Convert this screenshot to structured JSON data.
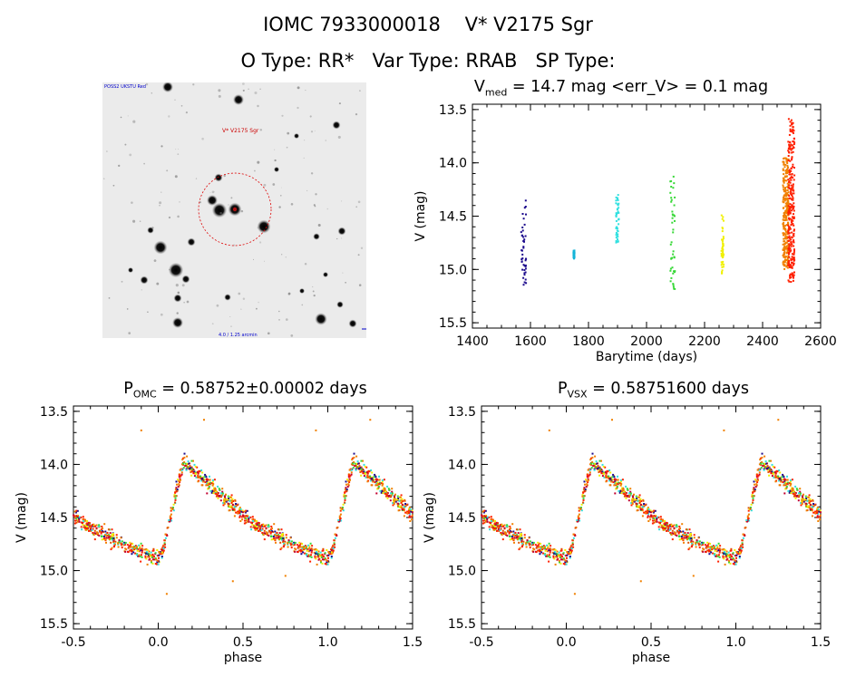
{
  "header": {
    "line1": "IOMC 7933000018    V* V2175 Sgr",
    "line2": "O Type: RR*   Var Type: RRAB   SP Type:"
  },
  "stamp": {
    "top_left_label": "POSS2 UKSTU Red",
    "target_label": "V* V2175 Sgr",
    "bottom_label": "4.0 / 1.25 arcmin",
    "circle_color": "#dd0000",
    "label_color": "#0000cc"
  },
  "titles": {
    "top_right_prefix": "V",
    "top_right_sub": "med",
    "top_right_rest": " = 14.7 mag <err_V> = 0.1 mag",
    "bottom_left_prefix": "P",
    "bottom_left_sub": "OMC",
    "bottom_left_rest": " = 0.58752±0.00002 days",
    "bottom_right_prefix": "P",
    "bottom_right_sub": "VSX",
    "bottom_right_rest": " = 0.58751600 days"
  },
  "chart_data": [
    {
      "type": "scatter",
      "panel": "light-curve",
      "xlabel": "Barytime (days)",
      "ylabel": "V (mag)",
      "xlim": [
        1400,
        2600
      ],
      "ylim": [
        15.55,
        13.45
      ],
      "xticks": [
        1400,
        1600,
        1800,
        2000,
        2200,
        2400,
        2600
      ],
      "yticks": [
        13.5,
        14.0,
        14.5,
        15.0,
        15.5
      ],
      "ytick_labels": [
        "13.5",
        "14.0",
        "14.5",
        "15.0",
        "15.5"
      ],
      "series": [
        {
          "color": "#1c0a8c",
          "x": [
            1568,
            1585
          ],
          "y": [
            14.33,
            15.15
          ],
          "note": "epoch 1"
        },
        {
          "color": "#14b4d8",
          "x": [
            1748,
            1752
          ],
          "y": [
            14.82,
            14.9
          ],
          "note": "epoch 2"
        },
        {
          "color": "#30e0e0",
          "x": [
            1895,
            1905
          ],
          "y": [
            14.3,
            14.78
          ],
          "note": "epoch 3"
        },
        {
          "color": "#38d838",
          "x": [
            2082,
            2098
          ],
          "y": [
            14.08,
            15.22
          ],
          "note": "epoch 4"
        },
        {
          "color": "#f0f000",
          "x": [
            2258,
            2266
          ],
          "y": [
            14.45,
            15.05
          ],
          "note": "epoch 5"
        },
        {
          "color": "#f08000",
          "x": [
            2470,
            2490
          ],
          "y": [
            13.95,
            15.0
          ],
          "note": "epoch 6"
        },
        {
          "color": "#ff2000",
          "x": [
            2488,
            2510
          ],
          "y": [
            13.58,
            15.12
          ],
          "note": "epoch 7"
        }
      ]
    },
    {
      "type": "scatter",
      "panel": "phase-omc",
      "xlabel": "phase",
      "ylabel": "V (mag)",
      "xlim": [
        -0.5,
        1.5
      ],
      "ylim": [
        15.55,
        13.45
      ],
      "xticks": [
        -0.5,
        0.0,
        0.5,
        1.0,
        1.5
      ],
      "xtick_labels": [
        "-0.5",
        "0.0",
        "0.5",
        "1.0",
        "1.5"
      ],
      "yticks": [
        13.5,
        14.0,
        14.5,
        15.0,
        15.5
      ],
      "ytick_labels": [
        "13.5",
        "14.0",
        "14.5",
        "15.0",
        "15.5"
      ],
      "period_days": 0.58752,
      "light_curve_shape": {
        "max_phase": 0.15,
        "max_mag": 13.97,
        "min_phase": 0.0,
        "min_mag": 14.9,
        "mid_phase": 0.5,
        "mid_mag": 14.62
      }
    },
    {
      "type": "scatter",
      "panel": "phase-vsx",
      "xlabel": "phase",
      "ylabel": "V (mag)",
      "xlim": [
        -0.5,
        1.5
      ],
      "ylim": [
        15.55,
        13.45
      ],
      "xticks": [
        -0.5,
        0.0,
        0.5,
        1.0,
        1.5
      ],
      "xtick_labels": [
        "-0.5",
        "0.0",
        "0.5",
        "1.0",
        "1.5"
      ],
      "yticks": [
        13.5,
        14.0,
        14.5,
        15.0,
        15.5
      ],
      "ytick_labels": [
        "13.5",
        "14.0",
        "14.5",
        "15.0",
        "15.5"
      ],
      "period_days": 0.587516,
      "light_curve_shape": {
        "max_phase": 0.15,
        "max_mag": 13.97,
        "min_phase": 0.0,
        "min_mag": 14.9,
        "mid_phase": 0.5,
        "mid_mag": 14.62
      }
    }
  ]
}
